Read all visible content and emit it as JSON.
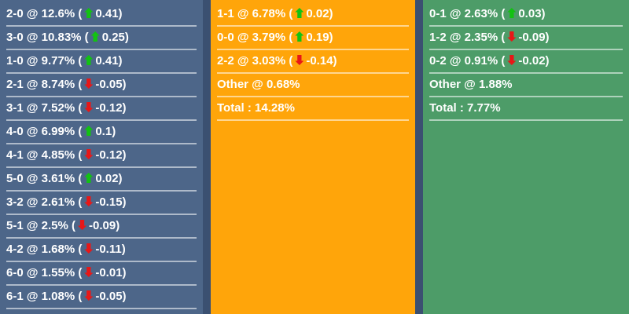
{
  "colors": {
    "page_bg": "#3b5071",
    "home_column_bg": "#4d6689",
    "draw_column_bg": "#ffa50a",
    "away_column_bg": "#4d9c68",
    "text": "#ffffff",
    "separator": "rgba(255,255,255,0.55)",
    "arrow_up": "#12c212",
    "arrow_down": "#e81717"
  },
  "columns": [
    {
      "id": "home",
      "rows": [
        {
          "score": "2-0",
          "pct": "12.6%",
          "direction": "up",
          "change": "0.41",
          "pre": "2-0 @ 12.6% (",
          "arrow": "up",
          "post": "0.41)"
        },
        {
          "score": "3-0",
          "pct": "10.83%",
          "direction": "up",
          "change": "0.25",
          "pre": "3-0 @ 10.83% (",
          "arrow": "up",
          "post": "0.25)"
        },
        {
          "score": "1-0",
          "pct": "9.77%",
          "direction": "up",
          "change": "0.41",
          "pre": "1-0 @ 9.77% (",
          "arrow": "up",
          "post": "0.41)"
        },
        {
          "score": "2-1",
          "pct": "8.74%",
          "direction": "down",
          "change": "-0.05",
          "pre": "2-1 @ 8.74% (",
          "arrow": "down",
          "post": "-0.05)"
        },
        {
          "score": "3-1",
          "pct": "7.52%",
          "direction": "down",
          "change": "-0.12",
          "pre": "3-1 @ 7.52% (",
          "arrow": "down",
          "post": "-0.12)"
        },
        {
          "score": "4-0",
          "pct": "6.99%",
          "direction": "up",
          "change": "0.1",
          "pre": "4-0 @ 6.99% (",
          "arrow": "up",
          "post": "0.1)"
        },
        {
          "score": "4-1",
          "pct": "4.85%",
          "direction": "down",
          "change": "-0.12",
          "pre": "4-1 @ 4.85% (",
          "arrow": "down",
          "post": "-0.12)"
        },
        {
          "score": "5-0",
          "pct": "3.61%",
          "direction": "up",
          "change": "0.02",
          "pre": "5-0 @ 3.61% (",
          "arrow": "up",
          "post": "0.02)"
        },
        {
          "score": "3-2",
          "pct": "2.61%",
          "direction": "down",
          "change": "-0.15",
          "pre": "3-2 @ 2.61% (",
          "arrow": "down",
          "post": "-0.15)"
        },
        {
          "score": "5-1",
          "pct": "2.5%",
          "direction": "down",
          "change": "-0.09",
          "pre": "5-1 @ 2.5% (",
          "arrow": "down",
          "post": "-0.09)"
        },
        {
          "score": "4-2",
          "pct": "1.68%",
          "direction": "down",
          "change": "-0.11",
          "pre": "4-2 @ 1.68% (",
          "arrow": "down",
          "post": "-0.11)"
        },
        {
          "score": "6-0",
          "pct": "1.55%",
          "direction": "down",
          "change": "-0.01",
          "pre": "6-0 @ 1.55% (",
          "arrow": "down",
          "post": "-0.01)"
        },
        {
          "score": "6-1",
          "pct": "1.08%",
          "direction": "down",
          "change": "-0.05",
          "pre": "6-1 @ 1.08% (",
          "arrow": "down",
          "post": "-0.05)"
        }
      ]
    },
    {
      "id": "draw",
      "rows": [
        {
          "score": "1-1",
          "pct": "6.78%",
          "direction": "up",
          "change": "0.02",
          "pre": "1-1 @ 6.78% (",
          "arrow": "up",
          "post": "0.02)"
        },
        {
          "score": "0-0",
          "pct": "3.79%",
          "direction": "up",
          "change": "0.19",
          "pre": "0-0 @ 3.79% (",
          "arrow": "up",
          "post": "0.19)"
        },
        {
          "score": "2-2",
          "pct": "3.03%",
          "direction": "down",
          "change": "-0.14",
          "pre": "2-2 @ 3.03% (",
          "arrow": "down",
          "post": "-0.14)"
        },
        {
          "score": "Other",
          "pct": "0.68%",
          "pre": "Other @ 0.68%"
        },
        {
          "score": "Total",
          "pct": "14.28%",
          "pre": "Total : 14.28%"
        }
      ]
    },
    {
      "id": "away",
      "rows": [
        {
          "score": "0-1",
          "pct": "2.63%",
          "direction": "up",
          "change": "0.03",
          "pre": "0-1 @ 2.63% (",
          "arrow": "up",
          "post": "0.03)"
        },
        {
          "score": "1-2",
          "pct": "2.35%",
          "direction": "down",
          "change": "-0.09",
          "pre": "1-2 @ 2.35% (",
          "arrow": "down",
          "post": "-0.09)"
        },
        {
          "score": "0-2",
          "pct": "0.91%",
          "direction": "down",
          "change": "-0.02",
          "pre": "0-2 @ 0.91% (",
          "arrow": "down",
          "post": "-0.02)"
        },
        {
          "score": "Other",
          "pct": "1.88%",
          "pre": "Other @ 1.88%"
        },
        {
          "score": "Total",
          "pct": "7.77%",
          "pre": "Total : 7.77%"
        }
      ]
    }
  ]
}
